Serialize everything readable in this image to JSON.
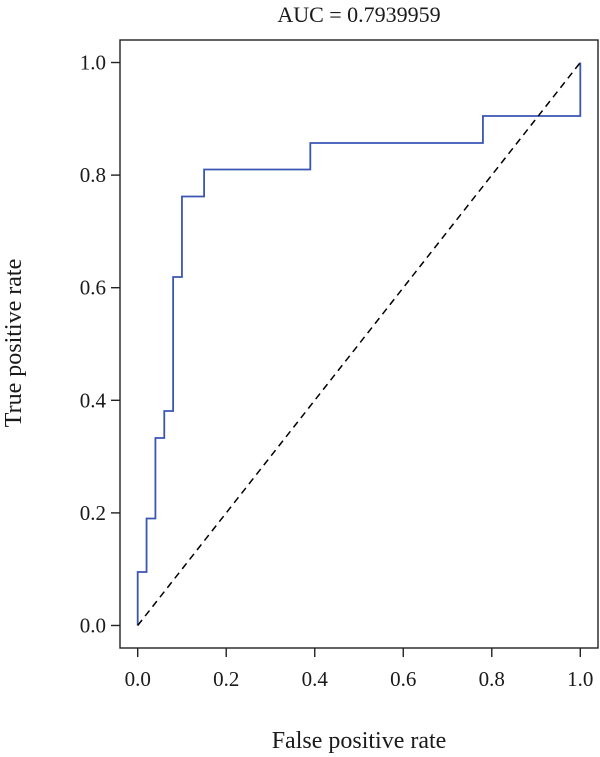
{
  "chart_data": {
    "type": "line",
    "title": "AUC = 0.7939959",
    "xlabel": "False positive rate",
    "ylabel": "True positive rate",
    "xlim": [
      -0.04,
      1.04
    ],
    "ylim": [
      -0.04,
      1.04
    ],
    "x_ticks": [
      "0.0",
      "0.2",
      "0.4",
      "0.6",
      "0.8",
      "1.0"
    ],
    "y_ticks": [
      "0.0",
      "0.2",
      "0.4",
      "0.6",
      "0.8",
      "1.0"
    ],
    "grid": false,
    "legend": "none",
    "series": [
      {
        "style": "solid",
        "color": "#3a56b4",
        "x": [
          0.0,
          0.0,
          0.02,
          0.02,
          0.04,
          0.04,
          0.06,
          0.06,
          0.08,
          0.08,
          0.1,
          0.1,
          0.15,
          0.15,
          0.39,
          0.39,
          0.78,
          0.78,
          1.0,
          1.0
        ],
        "y": [
          0.0,
          0.095,
          0.095,
          0.19,
          0.19,
          0.333,
          0.333,
          0.381,
          0.381,
          0.619,
          0.619,
          0.762,
          0.762,
          0.81,
          0.81,
          0.857,
          0.857,
          0.905,
          0.905,
          1.0
        ]
      },
      {
        "style": "dashed",
        "color": "#000000",
        "x": [
          0.0,
          1.0
        ],
        "y": [
          0.0,
          1.0
        ]
      }
    ]
  }
}
